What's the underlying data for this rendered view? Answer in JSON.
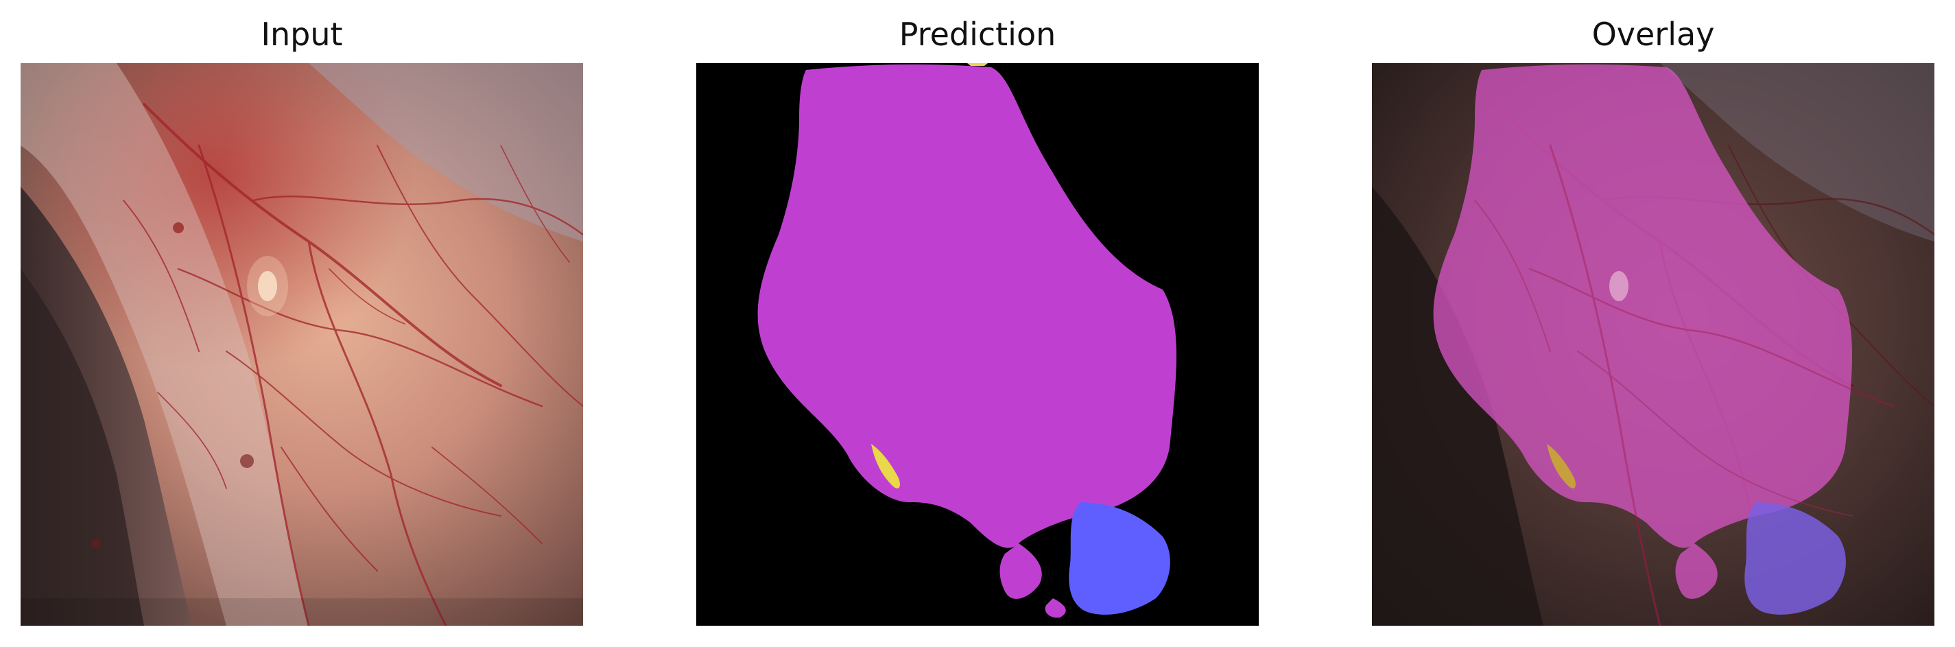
{
  "panels": [
    {
      "title": "Input"
    },
    {
      "title": "Prediction"
    },
    {
      "title": "Overlay"
    }
  ],
  "colors": {
    "background": "#ffffff",
    "prediction_background": "#000000",
    "class_magenta": "#bf40d0",
    "class_blue": "#5f5fff",
    "class_yellow": "#e8d84a",
    "tissue_base": "#9a5f55",
    "vessel": "#a1222a"
  }
}
